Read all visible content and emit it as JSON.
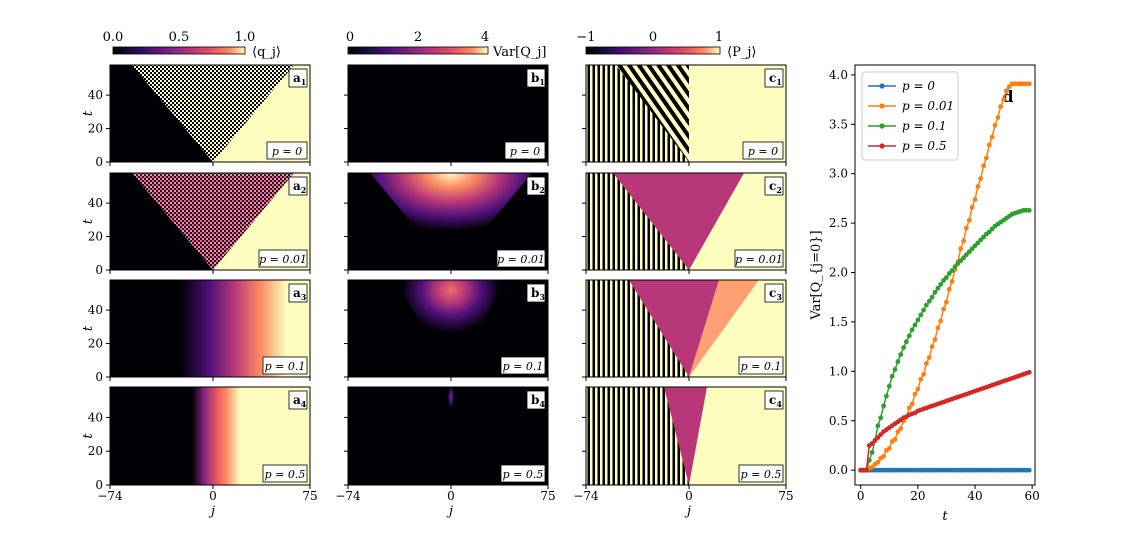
{
  "colorbars": [
    {
      "id": "a",
      "ticks": [
        "0.0",
        "0.5",
        "1.0"
      ],
      "label": "⟨q_j⟩",
      "cmap": "magma"
    },
    {
      "id": "b",
      "ticks": [
        "0",
        "2",
        "4"
      ],
      "label": "Var[Q_j]",
      "cmap": "magma"
    },
    {
      "id": "c",
      "ticks": [
        "−1",
        "0",
        "1"
      ],
      "label": "⟨P_j⟩",
      "cmap": "magma"
    }
  ],
  "axes": {
    "t_label": "t",
    "j_label": "j",
    "t_ticks": [
      "0",
      "20",
      "40"
    ],
    "j_ticks": [
      "−74",
      "0",
      "75"
    ]
  },
  "p_values": [
    "p = 0",
    "p = 0.01",
    "p = 0.1",
    "p = 0.5"
  ],
  "panel_labels": {
    "a": [
      "a1",
      "a2",
      "a3",
      "a4"
    ],
    "b": [
      "b1",
      "b2",
      "b3",
      "b4"
    ],
    "c": [
      "c1",
      "c2",
      "c3",
      "c4"
    ]
  },
  "colors": {
    "black": "#000004",
    "light": "#fcfdbf",
    "magenta": "#b73779",
    "orange": "#fc8961",
    "purple": "#51127c"
  },
  "chart_data": {
    "type": "line",
    "panel_label": "d",
    "xlabel": "t",
    "ylabel": "Var[Q_{j=0}]",
    "xlim": [
      -2,
      61
    ],
    "ylim": [
      -0.15,
      4.1
    ],
    "xticks": [
      0,
      20,
      40,
      60
    ],
    "yticks": [
      0.0,
      0.5,
      1.0,
      1.5,
      2.0,
      2.5,
      3.0,
      3.5,
      4.0
    ],
    "ytick_labels": [
      "0.0",
      "0.5",
      "1.0",
      "1.5",
      "2.0",
      "2.5",
      "3.0",
      "3.5",
      "4.0"
    ],
    "legend_position": "top-left",
    "grid": false,
    "x": [
      0,
      1,
      2,
      3,
      4,
      5,
      6,
      7,
      8,
      9,
      10,
      11,
      12,
      13,
      14,
      15,
      16,
      17,
      18,
      19,
      20,
      21,
      22,
      23,
      24,
      25,
      26,
      27,
      28,
      29,
      30,
      31,
      32,
      33,
      34,
      35,
      36,
      37,
      38,
      39,
      40,
      41,
      42,
      43,
      44,
      45,
      46,
      47,
      48,
      49,
      50,
      51,
      52,
      53,
      54,
      55,
      56,
      57,
      58,
      59
    ],
    "series": [
      {
        "name": "p = 0",
        "color": "#1f77b4",
        "values": [
          0,
          0,
          0,
          0,
          0,
          0,
          0,
          0,
          0,
          0,
          0,
          0,
          0,
          0,
          0,
          0,
          0,
          0,
          0,
          0,
          0,
          0,
          0,
          0,
          0,
          0,
          0,
          0,
          0,
          0,
          0,
          0,
          0,
          0,
          0,
          0,
          0,
          0,
          0,
          0,
          0,
          0,
          0,
          0,
          0,
          0,
          0,
          0,
          0,
          0,
          0,
          0,
          0,
          0,
          0,
          0,
          0,
          0,
          0,
          0
        ]
      },
      {
        "name": "p = 0.01",
        "color": "#ff7f0e",
        "values": [
          0.0,
          0.0,
          0.0,
          0.02,
          0.03,
          0.06,
          0.08,
          0.12,
          0.14,
          0.2,
          0.22,
          0.29,
          0.31,
          0.39,
          0.42,
          0.5,
          0.54,
          0.63,
          0.67,
          0.77,
          0.82,
          0.92,
          0.97,
          1.08,
          1.14,
          1.25,
          1.32,
          1.44,
          1.51,
          1.63,
          1.7,
          1.83,
          1.91,
          2.03,
          2.11,
          2.24,
          2.32,
          2.45,
          2.53,
          2.66,
          2.74,
          2.87,
          2.95,
          3.08,
          3.16,
          3.29,
          3.37,
          3.49,
          3.57,
          3.68,
          3.75,
          3.84,
          3.88,
          3.91,
          3.91,
          3.91,
          3.91,
          3.91,
          3.91,
          3.91
        ]
      },
      {
        "name": "p = 0.1",
        "color": "#2ca02c",
        "values": [
          0.0,
          0.0,
          0.0,
          0.1,
          0.18,
          0.3,
          0.45,
          0.53,
          0.65,
          0.75,
          0.85,
          0.95,
          1.02,
          1.1,
          1.17,
          1.24,
          1.3,
          1.36,
          1.42,
          1.47,
          1.52,
          1.57,
          1.62,
          1.67,
          1.71,
          1.75,
          1.8,
          1.84,
          1.88,
          1.92,
          1.95,
          1.99,
          2.02,
          2.06,
          2.09,
          2.12,
          2.15,
          2.18,
          2.21,
          2.24,
          2.27,
          2.3,
          2.33,
          2.36,
          2.39,
          2.41,
          2.44,
          2.47,
          2.49,
          2.51,
          2.53,
          2.55,
          2.57,
          2.59,
          2.6,
          2.61,
          2.62,
          2.63,
          2.63,
          2.63
        ]
      },
      {
        "name": "p = 0.5",
        "color": "#d62728",
        "values": [
          0.0,
          0.0,
          0.0,
          0.25,
          0.27,
          0.3,
          0.33,
          0.36,
          0.39,
          0.41,
          0.43,
          0.45,
          0.47,
          0.49,
          0.51,
          0.53,
          0.54,
          0.56,
          0.57,
          0.58,
          0.6,
          0.61,
          0.62,
          0.63,
          0.64,
          0.65,
          0.66,
          0.67,
          0.68,
          0.69,
          0.7,
          0.71,
          0.72,
          0.73,
          0.74,
          0.75,
          0.76,
          0.77,
          0.78,
          0.79,
          0.8,
          0.81,
          0.82,
          0.83,
          0.84,
          0.85,
          0.86,
          0.87,
          0.88,
          0.89,
          0.9,
          0.91,
          0.92,
          0.93,
          0.94,
          0.95,
          0.96,
          0.97,
          0.98,
          0.99
        ]
      }
    ]
  }
}
